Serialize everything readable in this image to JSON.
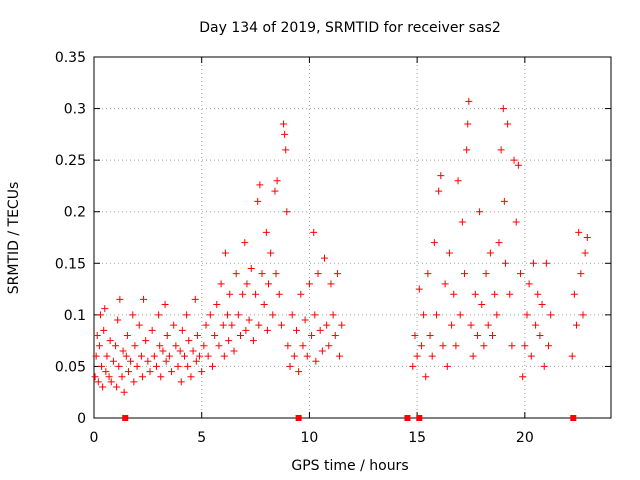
{
  "chart_data": {
    "type": "scatter",
    "title": "Day 134 of 2019, SRMTID for receiver sas2",
    "xlabel": "GPS time / hours",
    "ylabel": "SRMTID / TECUs",
    "xlim": [
      0,
      24
    ],
    "ylim": [
      0,
      0.35
    ],
    "x_ticks": [
      0,
      5,
      10,
      15,
      20
    ],
    "x_tick_labels": [
      "0",
      "5",
      "10",
      "15",
      "20"
    ],
    "y_ticks": [
      0,
      0.05,
      0.1,
      0.15,
      0.2,
      0.25,
      0.3,
      0.35
    ],
    "y_tick_labels": [
      "0",
      "0.05",
      "0.1",
      "0.15",
      "0.2",
      "0.25",
      "0.3",
      "0.35"
    ],
    "grid": true,
    "colors": {
      "series": "#ff0000",
      "grid": "#a0a0a0",
      "axes": "#000000"
    },
    "series": [
      {
        "name": "SRMTID",
        "marker": "plus",
        "points": [
          [
            0.05,
            0.04
          ],
          [
            0.1,
            0.06
          ],
          [
            0.15,
            0.08
          ],
          [
            0.2,
            0.035
          ],
          [
            0.25,
            0.07
          ],
          [
            0.3,
            0.1
          ],
          [
            0.35,
            0.05
          ],
          [
            0.4,
            0.03
          ],
          [
            0.45,
            0.085
          ],
          [
            0.5,
            0.106
          ],
          [
            0.55,
            0.045
          ],
          [
            0.6,
            0.06
          ],
          [
            0.7,
            0.04
          ],
          [
            0.75,
            0.075
          ],
          [
            0.8,
            0.035
          ],
          [
            0.9,
            0.055
          ],
          [
            1.0,
            0.07
          ],
          [
            1.05,
            0.03
          ],
          [
            1.1,
            0.095
          ],
          [
            1.15,
            0.05
          ],
          [
            1.2,
            0.115
          ],
          [
            1.3,
            0.04
          ],
          [
            1.35,
            0.065
          ],
          [
            1.4,
            0.025
          ],
          [
            1.5,
            0.06
          ],
          [
            1.55,
            0.08
          ],
          [
            1.6,
            0.045
          ],
          [
            1.7,
            0.055
          ],
          [
            1.8,
            0.1
          ],
          [
            1.85,
            0.035
          ],
          [
            1.9,
            0.07
          ],
          [
            2.0,
            0.05
          ],
          [
            2.1,
            0.09
          ],
          [
            2.2,
            0.06
          ],
          [
            2.25,
            0.04
          ],
          [
            2.3,
            0.115
          ],
          [
            2.4,
            0.075
          ],
          [
            2.5,
            0.055
          ],
          [
            2.6,
            0.045
          ],
          [
            2.7,
            0.085
          ],
          [
            2.8,
            0.06
          ],
          [
            2.9,
            0.05
          ],
          [
            3.0,
            0.1
          ],
          [
            3.05,
            0.07
          ],
          [
            3.1,
            0.04
          ],
          [
            3.2,
            0.065
          ],
          [
            3.3,
            0.11
          ],
          [
            3.35,
            0.055
          ],
          [
            3.4,
            0.08
          ],
          [
            3.5,
            0.06
          ],
          [
            3.6,
            0.045
          ],
          [
            3.7,
            0.09
          ],
          [
            3.8,
            0.07
          ],
          [
            3.9,
            0.05
          ],
          [
            4.0,
            0.065
          ],
          [
            4.05,
            0.035
          ],
          [
            4.1,
            0.085
          ],
          [
            4.2,
            0.06
          ],
          [
            4.3,
            0.1
          ],
          [
            4.35,
            0.05
          ],
          [
            4.4,
            0.075
          ],
          [
            4.5,
            0.04
          ],
          [
            4.6,
            0.065
          ],
          [
            4.7,
            0.115
          ],
          [
            4.75,
            0.055
          ],
          [
            4.8,
            0.08
          ],
          [
            4.9,
            0.06
          ],
          [
            5.0,
            0.045
          ],
          [
            5.1,
            0.07
          ],
          [
            5.2,
            0.09
          ],
          [
            5.3,
            0.06
          ],
          [
            5.4,
            0.1
          ],
          [
            5.5,
            0.05
          ],
          [
            5.6,
            0.08
          ],
          [
            5.7,
            0.11
          ],
          [
            5.8,
            0.07
          ],
          [
            5.9,
            0.13
          ],
          [
            6.0,
            0.09
          ],
          [
            6.05,
            0.06
          ],
          [
            6.1,
            0.16
          ],
          [
            6.2,
            0.1
          ],
          [
            6.25,
            0.075
          ],
          [
            6.3,
            0.12
          ],
          [
            6.4,
            0.09
          ],
          [
            6.5,
            0.065
          ],
          [
            6.6,
            0.14
          ],
          [
            6.7,
            0.1
          ],
          [
            6.8,
            0.08
          ],
          [
            6.9,
            0.12
          ],
          [
            7.0,
            0.17
          ],
          [
            7.05,
            0.085
          ],
          [
            7.1,
            0.13
          ],
          [
            7.2,
            0.095
          ],
          [
            7.3,
            0.145
          ],
          [
            7.4,
            0.075
          ],
          [
            7.5,
            0.12
          ],
          [
            7.6,
            0.21
          ],
          [
            7.65,
            0.09
          ],
          [
            7.7,
            0.226
          ],
          [
            7.8,
            0.14
          ],
          [
            7.9,
            0.11
          ],
          [
            8.0,
            0.18
          ],
          [
            8.05,
            0.085
          ],
          [
            8.1,
            0.13
          ],
          [
            8.2,
            0.16
          ],
          [
            8.3,
            0.1
          ],
          [
            8.4,
            0.22
          ],
          [
            8.45,
            0.14
          ],
          [
            8.5,
            0.23
          ],
          [
            8.6,
            0.12
          ],
          [
            8.7,
            0.09
          ],
          [
            8.8,
            0.285
          ],
          [
            8.85,
            0.275
          ],
          [
            8.9,
            0.26
          ],
          [
            8.95,
            0.2
          ],
          [
            9.0,
            0.07
          ],
          [
            9.1,
            0.05
          ],
          [
            9.2,
            0.1
          ],
          [
            9.3,
            0.06
          ],
          [
            9.4,
            0.085
          ],
          [
            9.5,
            0.045
          ],
          [
            9.6,
            0.12
          ],
          [
            9.7,
            0.07
          ],
          [
            9.8,
            0.095
          ],
          [
            9.9,
            0.06
          ],
          [
            10.0,
            0.13
          ],
          [
            10.1,
            0.08
          ],
          [
            10.2,
            0.18
          ],
          [
            10.25,
            0.1
          ],
          [
            10.3,
            0.055
          ],
          [
            10.4,
            0.14
          ],
          [
            10.5,
            0.085
          ],
          [
            10.6,
            0.065
          ],
          [
            10.7,
            0.155
          ],
          [
            10.8,
            0.09
          ],
          [
            10.9,
            0.07
          ],
          [
            11.0,
            0.13
          ],
          [
            11.1,
            0.1
          ],
          [
            11.2,
            0.08
          ],
          [
            11.3,
            0.14
          ],
          [
            11.4,
            0.06
          ],
          [
            11.5,
            0.09
          ],
          [
            14.8,
            0.05
          ],
          [
            14.9,
            0.08
          ],
          [
            15.0,
            0.06
          ],
          [
            15.1,
            0.125
          ],
          [
            15.2,
            0.07
          ],
          [
            15.3,
            0.1
          ],
          [
            15.4,
            0.04
          ],
          [
            15.5,
            0.14
          ],
          [
            15.6,
            0.08
          ],
          [
            15.7,
            0.06
          ],
          [
            15.8,
            0.17
          ],
          [
            15.9,
            0.1
          ],
          [
            16.0,
            0.22
          ],
          [
            16.1,
            0.235
          ],
          [
            16.2,
            0.07
          ],
          [
            16.3,
            0.13
          ],
          [
            16.4,
            0.05
          ],
          [
            16.5,
            0.16
          ],
          [
            16.6,
            0.09
          ],
          [
            16.7,
            0.12
          ],
          [
            16.8,
            0.07
          ],
          [
            16.9,
            0.23
          ],
          [
            17.0,
            0.1
          ],
          [
            17.1,
            0.19
          ],
          [
            17.2,
            0.14
          ],
          [
            17.3,
            0.26
          ],
          [
            17.35,
            0.285
          ],
          [
            17.4,
            0.307
          ],
          [
            17.5,
            0.09
          ],
          [
            17.6,
            0.06
          ],
          [
            17.7,
            0.12
          ],
          [
            17.8,
            0.08
          ],
          [
            17.9,
            0.2
          ],
          [
            18.0,
            0.11
          ],
          [
            18.1,
            0.07
          ],
          [
            18.2,
            0.14
          ],
          [
            18.3,
            0.09
          ],
          [
            18.4,
            0.16
          ],
          [
            18.5,
            0.08
          ],
          [
            18.6,
            0.12
          ],
          [
            18.7,
            0.1
          ],
          [
            18.8,
            0.17
          ],
          [
            18.9,
            0.26
          ],
          [
            19.0,
            0.3
          ],
          [
            19.05,
            0.21
          ],
          [
            19.1,
            0.15
          ],
          [
            19.2,
            0.285
          ],
          [
            19.3,
            0.12
          ],
          [
            19.4,
            0.07
          ],
          [
            19.5,
            0.25
          ],
          [
            19.6,
            0.19
          ],
          [
            19.7,
            0.245
          ],
          [
            19.8,
            0.14
          ],
          [
            19.9,
            0.04
          ],
          [
            20.0,
            0.07
          ],
          [
            20.1,
            0.1
          ],
          [
            20.2,
            0.13
          ],
          [
            20.3,
            0.06
          ],
          [
            20.4,
            0.15
          ],
          [
            20.5,
            0.09
          ],
          [
            20.6,
            0.12
          ],
          [
            20.7,
            0.08
          ],
          [
            20.8,
            0.11
          ],
          [
            20.9,
            0.05
          ],
          [
            21.0,
            0.15
          ],
          [
            21.1,
            0.07
          ],
          [
            21.2,
            0.1
          ],
          [
            22.2,
            0.06
          ],
          [
            22.3,
            0.12
          ],
          [
            22.4,
            0.09
          ],
          [
            22.5,
            0.18
          ],
          [
            22.6,
            0.14
          ],
          [
            22.7,
            0.1
          ],
          [
            22.8,
            0.16
          ],
          [
            22.9,
            0.175
          ]
        ]
      }
    ],
    "gap_markers_x": [
      1.45,
      9.5,
      14.55,
      15.1,
      22.25
    ]
  }
}
